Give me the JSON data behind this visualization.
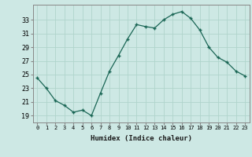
{
  "x": [
    0,
    1,
    2,
    3,
    4,
    5,
    6,
    7,
    8,
    9,
    10,
    11,
    12,
    13,
    14,
    15,
    16,
    17,
    18,
    19,
    20,
    21,
    22,
    23
  ],
  "y": [
    24.5,
    23.0,
    21.2,
    20.5,
    19.5,
    19.8,
    19.0,
    22.3,
    25.5,
    27.8,
    30.2,
    32.3,
    32.0,
    31.8,
    33.0,
    33.8,
    34.2,
    33.2,
    31.5,
    29.0,
    27.5,
    26.8,
    25.5,
    24.8
  ],
  "bg_color": "#cde8e4",
  "grid_color": "#b0d4cc",
  "line_color": "#1a6655",
  "marker_color": "#1a6655",
  "xlabel": "Humidex (Indice chaleur)",
  "yticks": [
    19,
    21,
    23,
    25,
    27,
    29,
    31,
    33
  ],
  "xticks": [
    0,
    1,
    2,
    3,
    4,
    5,
    6,
    7,
    8,
    9,
    10,
    11,
    12,
    13,
    14,
    15,
    16,
    17,
    18,
    19,
    20,
    21,
    22,
    23
  ],
  "ylim": [
    18.0,
    35.2
  ],
  "xlim": [
    -0.5,
    23.5
  ]
}
